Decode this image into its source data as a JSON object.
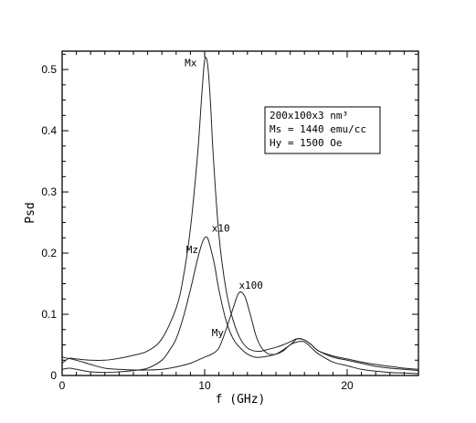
{
  "chart_data": {
    "type": "line",
    "xlabel": "f (GHz)",
    "ylabel": "Psd",
    "xlim": [
      0,
      25
    ],
    "ylim": [
      0,
      0.53
    ],
    "xticks": [
      0,
      10,
      20
    ],
    "yticks": [
      0,
      0.1,
      0.2,
      0.3,
      0.4,
      0.5
    ],
    "xtick_labels": [
      "0",
      "10",
      "20"
    ],
    "ytick_labels": [
      "0",
      "0.1",
      "0.2",
      "0.3",
      "0.4",
      "0.5"
    ],
    "grid": false,
    "series": [
      {
        "name": "Mx",
        "x": [
          0,
          0.5,
          1,
          2,
          3,
          4,
          5,
          6,
          7,
          8,
          8.5,
          9,
          9.5,
          9.8,
          10,
          10.2,
          10.4,
          10.6,
          11,
          11.5,
          12,
          12.5,
          13,
          13.5,
          14,
          14.5,
          15,
          15.5,
          16,
          16.5,
          17,
          17.5,
          18,
          19,
          20,
          21,
          22,
          23,
          24,
          25
        ],
        "y": [
          0.02,
          0.028,
          0.027,
          0.025,
          0.025,
          0.028,
          0.033,
          0.04,
          0.06,
          0.11,
          0.16,
          0.24,
          0.36,
          0.46,
          0.515,
          0.51,
          0.45,
          0.36,
          0.23,
          0.14,
          0.09,
          0.06,
          0.045,
          0.04,
          0.04,
          0.043,
          0.046,
          0.05,
          0.055,
          0.06,
          0.058,
          0.05,
          0.04,
          0.032,
          0.027,
          0.022,
          0.018,
          0.015,
          0.012,
          0.01
        ]
      },
      {
        "name": "Mz",
        "x": [
          0,
          0.5,
          1,
          2,
          3,
          4,
          5,
          6,
          7,
          7.5,
          8,
          8.5,
          9,
          9.5,
          9.8,
          10,
          10.2,
          10.4,
          10.7,
          11,
          11.5,
          12,
          12.5,
          13,
          13.5,
          14,
          15,
          16,
          16.5,
          17,
          17.5,
          18,
          19,
          20,
          21,
          22,
          23,
          24,
          25
        ],
        "y": [
          0.01,
          0.012,
          0.01,
          0.006,
          0.005,
          0.006,
          0.008,
          0.012,
          0.025,
          0.04,
          0.06,
          0.095,
          0.14,
          0.19,
          0.215,
          0.225,
          0.225,
          0.21,
          0.18,
          0.14,
          0.09,
          0.06,
          0.045,
          0.035,
          0.03,
          0.03,
          0.035,
          0.05,
          0.06,
          0.058,
          0.05,
          0.04,
          0.03,
          0.025,
          0.02,
          0.015,
          0.012,
          0.01,
          0.008
        ]
      },
      {
        "name": "My",
        "x": [
          0,
          1,
          2,
          3,
          4,
          5,
          6,
          7,
          8,
          9,
          10,
          10.5,
          11,
          11.5,
          12,
          12.4,
          12.8,
          13.2,
          13.6,
          14,
          14.5,
          15,
          15.5,
          16,
          16.5,
          17,
          17.5,
          18,
          19,
          20,
          21,
          22,
          23,
          24,
          25
        ],
        "y": [
          0.03,
          0.025,
          0.018,
          0.012,
          0.01,
          0.009,
          0.009,
          0.01,
          0.014,
          0.02,
          0.03,
          0.035,
          0.045,
          0.075,
          0.11,
          0.135,
          0.13,
          0.1,
          0.065,
          0.045,
          0.035,
          0.035,
          0.04,
          0.05,
          0.055,
          0.055,
          0.045,
          0.035,
          0.022,
          0.016,
          0.01,
          0.007,
          0.005,
          0.004,
          0.003
        ]
      }
    ],
    "annotations": [
      {
        "text": "Mx",
        "x": 8.6,
        "y": 0.505
      },
      {
        "text": "x10",
        "x": 10.5,
        "y": 0.235
      },
      {
        "text": "Mz",
        "x": 8.7,
        "y": 0.2
      },
      {
        "text": "x100",
        "x": 12.4,
        "y": 0.142
      },
      {
        "text": "My",
        "x": 10.5,
        "y": 0.064
      }
    ],
    "legend_box": {
      "lines": [
        "200x100x3 nm³",
        "Ms = 1440 emu/cc",
        "Hy = 1500 Oe"
      ],
      "placement": "top-right"
    }
  }
}
